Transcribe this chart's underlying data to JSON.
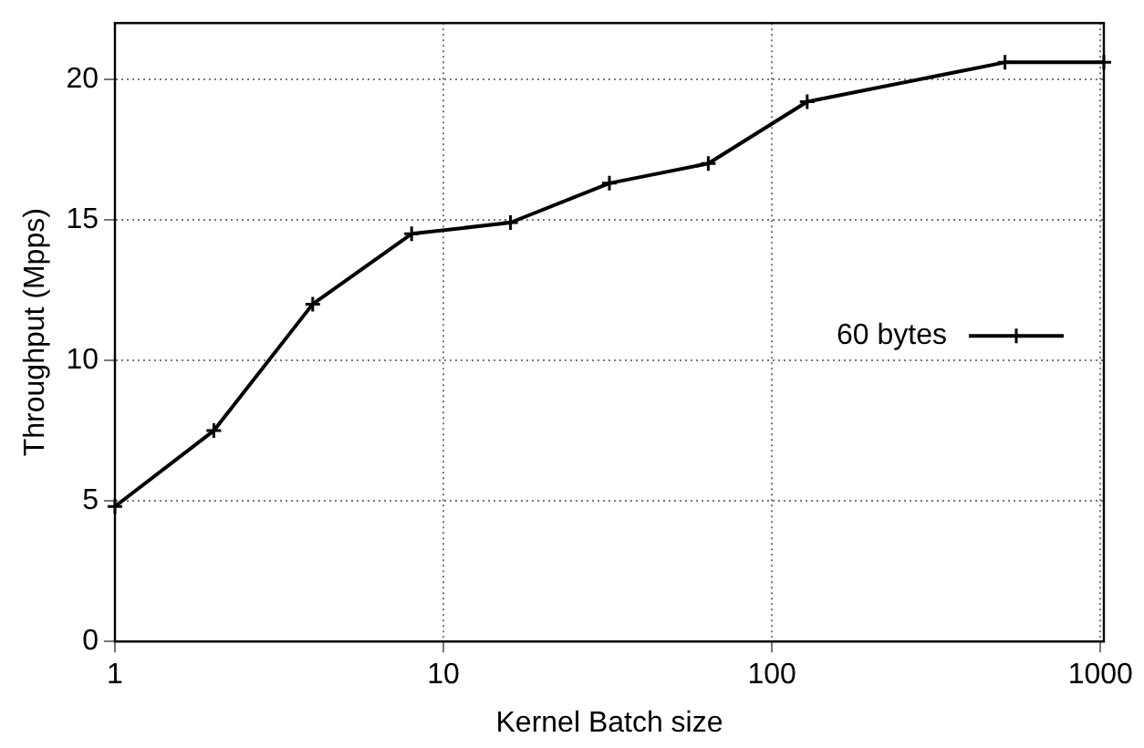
{
  "chart_data": {
    "type": "line",
    "xlabel": "Kernel Batch size",
    "ylabel": "Throughput (Mpps)",
    "x": [
      1,
      2,
      4,
      8,
      16,
      32,
      64,
      128,
      512,
      1024
    ],
    "series": [
      {
        "name": "60 bytes",
        "color": "#000000",
        "values": [
          4.8,
          7.5,
          12.0,
          14.5,
          14.9,
          16.3,
          17.0,
          19.2,
          20.6,
          20.6
        ]
      }
    ],
    "log": "x",
    "xlim": [
      1,
      1024
    ],
    "xticks": [
      1,
      10,
      100,
      1000
    ],
    "ylim": [
      0,
      22
    ],
    "yticks": [
      0,
      5,
      10,
      15,
      20
    ],
    "grid": true,
    "legend": "right",
    "marker": "cross",
    "line_style": "solid"
  }
}
